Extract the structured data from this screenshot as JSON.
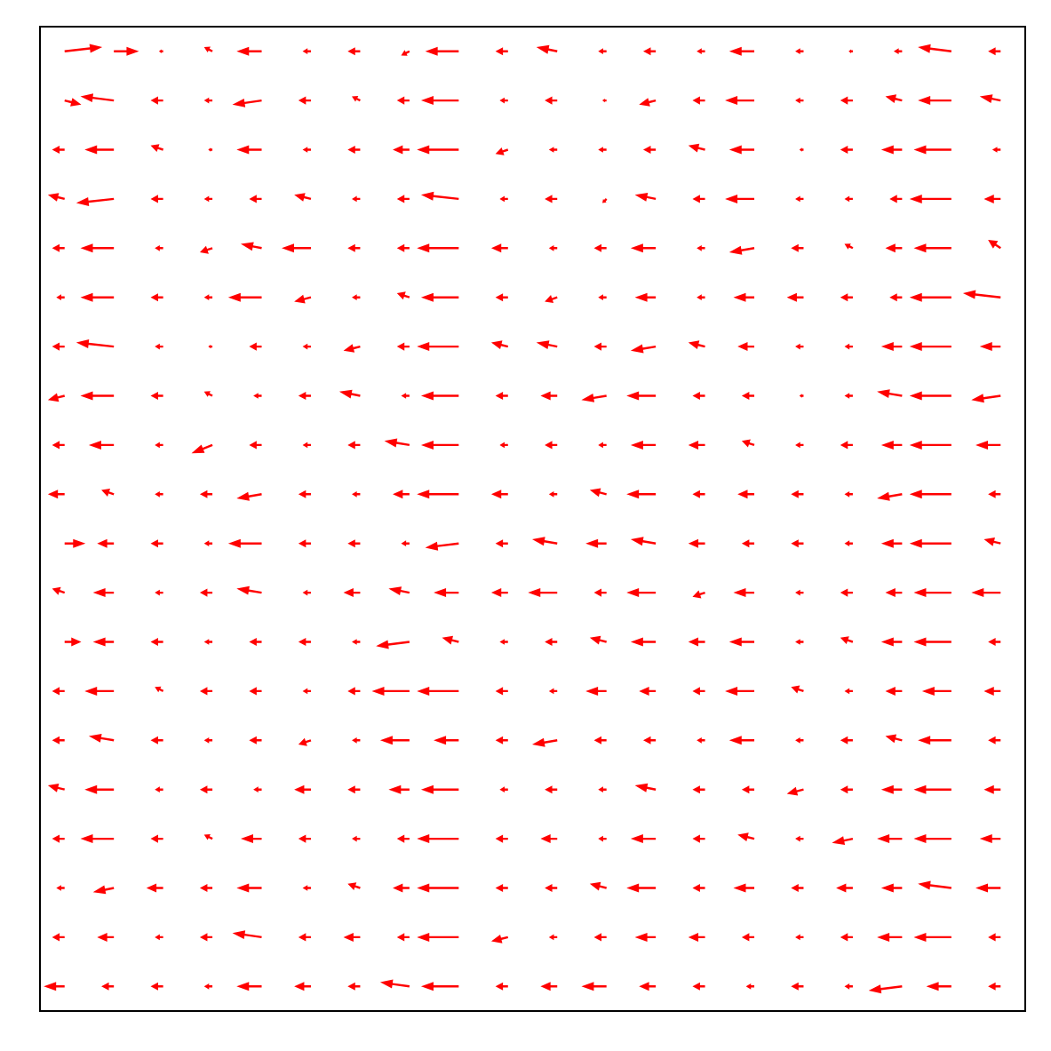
{
  "chart_data": {
    "type": "quiver",
    "color": "#ff0000",
    "grid": false,
    "tick_labels": false,
    "xlim": [
      -0.5,
      19.5
    ],
    "ylim": [
      -0.5,
      19.5
    ],
    "x": [
      0,
      1,
      2,
      3,
      4,
      5,
      6,
      7,
      8,
      9,
      10,
      11,
      12,
      13,
      14,
      15,
      16,
      17,
      18,
      19
    ],
    "y": [
      19,
      18,
      17,
      16,
      15,
      14,
      13,
      12,
      11,
      10,
      9,
      8,
      7,
      6,
      5,
      4,
      3,
      2,
      1,
      0
    ],
    "u": [
      [
        0.9,
        0.6,
        -0.1,
        -0.2,
        -0.6,
        -0.2,
        -0.3,
        -0.2,
        -0.8,
        -0.3,
        -0.5,
        -0.2,
        -0.3,
        -0.2,
        -0.6,
        -0.2,
        -0.1,
        -0.2,
        -0.8,
        -0.3
      ],
      [
        0.4,
        -0.8,
        -0.3,
        -0.2,
        -0.7,
        -0.3,
        -0.2,
        -0.3,
        -0.9,
        -0.2,
        -0.3,
        -0.1,
        -0.4,
        -0.3,
        -0.7,
        -0.2,
        -0.3,
        -0.4,
        -0.8,
        -0.5
      ],
      [
        -0.3,
        -0.7,
        -0.3,
        -0.1,
        -0.6,
        -0.2,
        -0.3,
        -0.4,
        -1.0,
        -0.3,
        -0.2,
        -0.2,
        -0.3,
        -0.4,
        -0.6,
        -0.1,
        -0.3,
        -0.5,
        -0.9,
        -0.2
      ],
      [
        -0.4,
        -0.9,
        -0.3,
        -0.2,
        -0.3,
        -0.4,
        -0.2,
        -0.3,
        -0.9,
        -0.2,
        -0.3,
        -0.1,
        -0.5,
        -0.3,
        -0.7,
        -0.2,
        -0.2,
        -0.3,
        -1.0,
        -0.4
      ],
      [
        -0.3,
        -0.8,
        -0.2,
        -0.3,
        -0.5,
        -0.7,
        -0.3,
        -0.3,
        -1.0,
        -0.4,
        -0.2,
        -0.3,
        -0.6,
        -0.2,
        -0.6,
        -0.3,
        -0.2,
        -0.4,
        -0.9,
        -0.3
      ],
      [
        -0.2,
        -0.8,
        -0.3,
        -0.2,
        -0.8,
        -0.4,
        -0.2,
        -0.3,
        -0.9,
        -0.3,
        -0.3,
        -0.2,
        -0.5,
        -0.2,
        -0.5,
        -0.4,
        -0.3,
        -0.3,
        -1.0,
        -0.9
      ],
      [
        -0.3,
        -0.9,
        -0.2,
        -0.1,
        -0.3,
        -0.2,
        -0.4,
        -0.3,
        -1.0,
        -0.4,
        -0.5,
        -0.3,
        -0.6,
        -0.4,
        -0.4,
        -0.2,
        -0.2,
        -0.5,
        -1.0,
        -0.5
      ],
      [
        -0.4,
        -0.8,
        -0.3,
        -0.2,
        -0.2,
        -0.3,
        -0.5,
        -0.2,
        -0.9,
        -0.3,
        -0.4,
        -0.6,
        -0.7,
        -0.3,
        -0.3,
        -0.1,
        -0.2,
        -0.6,
        -1.0,
        -0.7
      ],
      [
        -0.3,
        -0.6,
        -0.2,
        -0.5,
        -0.3,
        -0.2,
        -0.3,
        -0.6,
        -0.9,
        -0.2,
        -0.3,
        -0.2,
        -0.6,
        -0.4,
        -0.3,
        -0.2,
        -0.3,
        -0.5,
        -1.0,
        -0.6
      ],
      [
        -0.4,
        -0.3,
        -0.2,
        -0.3,
        -0.6,
        -0.3,
        -0.2,
        -0.4,
        -1.0,
        -0.4,
        -0.2,
        -0.4,
        -0.7,
        -0.3,
        -0.4,
        -0.3,
        -0.2,
        -0.6,
        -1.0,
        -0.3
      ],
      [
        0.5,
        -0.4,
        -0.3,
        -0.2,
        -0.8,
        -0.3,
        -0.3,
        -0.2,
        -0.8,
        -0.3,
        -0.6,
        -0.5,
        -0.6,
        -0.4,
        -0.3,
        -0.3,
        -0.2,
        -0.5,
        -1.0,
        -0.4
      ],
      [
        -0.3,
        -0.5,
        -0.2,
        -0.3,
        -0.6,
        -0.2,
        -0.4,
        -0.5,
        -0.6,
        -0.4,
        -0.7,
        -0.3,
        -0.7,
        -0.3,
        -0.5,
        -0.2,
        -0.3,
        -0.4,
        -0.9,
        -0.7
      ],
      [
        0.4,
        -0.5,
        -0.3,
        -0.2,
        -0.3,
        -0.3,
        -0.2,
        -0.8,
        -0.4,
        -0.2,
        -0.3,
        -0.4,
        -0.6,
        -0.4,
        -0.6,
        -0.2,
        -0.3,
        -0.5,
        -0.9,
        -0.3
      ],
      [
        -0.3,
        -0.7,
        -0.2,
        -0.3,
        -0.3,
        -0.2,
        -0.3,
        -0.9,
        -1.0,
        -0.3,
        -0.2,
        -0.5,
        -0.4,
        -0.3,
        -0.7,
        -0.3,
        -0.2,
        -0.4,
        -0.7,
        -0.4
      ],
      [
        -0.3,
        -0.6,
        -0.3,
        -0.2,
        -0.3,
        -0.3,
        -0.2,
        -0.7,
        -0.6,
        -0.3,
        -0.6,
        -0.3,
        -0.3,
        -0.2,
        -0.6,
        -0.2,
        -0.3,
        -0.4,
        -0.8,
        -0.3
      ],
      [
        -0.4,
        -0.7,
        -0.2,
        -0.3,
        -0.2,
        -0.4,
        -0.3,
        -0.5,
        -0.9,
        -0.2,
        -0.3,
        -0.2,
        -0.5,
        -0.3,
        -0.3,
        -0.4,
        -0.3,
        -0.5,
        -0.9,
        -0.4
      ],
      [
        -0.3,
        -0.8,
        -0.3,
        -0.2,
        -0.5,
        -0.3,
        -0.2,
        -0.3,
        -1.0,
        -0.3,
        -0.4,
        -0.2,
        -0.6,
        -0.3,
        -0.4,
        -0.2,
        -0.5,
        -0.6,
        -0.9,
        -0.5
      ],
      [
        -0.2,
        -0.5,
        -0.4,
        -0.3,
        -0.6,
        -0.2,
        -0.3,
        -0.4,
        -1.0,
        -0.3,
        -0.3,
        -0.4,
        -0.7,
        -0.3,
        -0.5,
        -0.3,
        -0.4,
        -0.5,
        -0.8,
        -0.6
      ],
      [
        -0.3,
        -0.4,
        -0.2,
        -0.3,
        -0.7,
        -0.3,
        -0.4,
        -0.3,
        -1.0,
        -0.4,
        -0.2,
        -0.3,
        -0.5,
        -0.4,
        -0.3,
        -0.2,
        -0.3,
        -0.6,
        -0.9,
        -0.3
      ],
      [
        -0.5,
        -0.3,
        -0.3,
        -0.2,
        -0.6,
        -0.4,
        -0.3,
        -0.7,
        -0.9,
        -0.3,
        -0.4,
        -0.6,
        -0.4,
        -0.3,
        -0.2,
        -0.3,
        -0.2,
        -0.8,
        -0.6,
        -0.3
      ]
    ],
    "v": [
      [
        0.1,
        0,
        0,
        0.1,
        0,
        0,
        0,
        -0.1,
        0,
        0,
        0.1,
        0,
        0,
        0,
        0,
        0,
        0,
        0,
        0.1,
        0
      ],
      [
        -0.1,
        0.1,
        0,
        0,
        -0.1,
        0,
        0.1,
        0,
        0,
        0,
        0,
        0,
        -0.1,
        0,
        0,
        0,
        0,
        0.1,
        0,
        0.1
      ],
      [
        0,
        0,
        0.1,
        0,
        0,
        0,
        0,
        0,
        0,
        -0.1,
        0,
        0,
        0,
        0.1,
        0,
        0,
        0,
        0,
        0,
        0
      ],
      [
        0.1,
        -0.1,
        0,
        0,
        0,
        0.1,
        0,
        0,
        0.1,
        0,
        0,
        -0.1,
        0.1,
        0,
        0,
        0,
        0,
        0,
        0,
        0
      ],
      [
        0,
        0,
        0,
        -0.1,
        0.1,
        0,
        0,
        0,
        0,
        0,
        0,
        0,
        0,
        0,
        -0.1,
        0,
        0.1,
        0,
        0,
        0.2
      ],
      [
        0,
        0,
        0,
        0,
        0,
        -0.1,
        0,
        0.1,
        0,
        0,
        -0.1,
        0,
        0,
        0,
        0,
        0,
        0,
        0,
        0,
        0.1
      ],
      [
        0,
        0.1,
        0,
        0,
        0,
        0,
        -0.1,
        0,
        0,
        0.1,
        0.1,
        0,
        -0.1,
        0.1,
        0,
        0,
        0,
        0,
        0,
        0
      ],
      [
        -0.1,
        0,
        0,
        0.1,
        0,
        0,
        0.1,
        0,
        0,
        0,
        0,
        -0.1,
        0,
        0,
        0,
        0,
        0,
        0.1,
        0,
        -0.1
      ],
      [
        0,
        0,
        0,
        -0.2,
        0,
        0,
        0,
        0.1,
        0,
        0,
        0,
        0,
        0,
        0,
        0.1,
        0,
        0,
        0,
        0,
        0
      ],
      [
        0,
        0.1,
        0,
        0,
        -0.1,
        0,
        0,
        0,
        0,
        0,
        0,
        0.1,
        0,
        0,
        0,
        0,
        0,
        -0.1,
        0,
        0
      ],
      [
        0,
        0,
        0,
        0,
        0,
        0,
        0,
        0,
        -0.1,
        0,
        0.1,
        0,
        0.1,
        0,
        0,
        0,
        0,
        0,
        0,
        0.1
      ],
      [
        0.1,
        0,
        0,
        0,
        0.1,
        0,
        0,
        0.1,
        0,
        0,
        0,
        0,
        0,
        -0.1,
        0,
        0,
        0,
        0,
        0,
        0
      ],
      [
        0,
        0,
        0,
        0,
        0,
        0,
        0,
        -0.1,
        0.1,
        0,
        0,
        0.1,
        0,
        0,
        0,
        0,
        0.1,
        0,
        0,
        0
      ],
      [
        0,
        0,
        0.1,
        0,
        0,
        0,
        0,
        0,
        0,
        0,
        0,
        0,
        0,
        0,
        0,
        0.1,
        0,
        0,
        0,
        0
      ],
      [
        0,
        0.1,
        0,
        0,
        0,
        -0.1,
        0,
        0,
        0,
        0,
        -0.1,
        0,
        0,
        0,
        0,
        0,
        0,
        0.1,
        0,
        0
      ],
      [
        0.1,
        0,
        0,
        0,
        0,
        0,
        0,
        0,
        0,
        0,
        0,
        0,
        0.1,
        0,
        0,
        -0.1,
        0,
        0,
        0,
        0
      ],
      [
        0,
        0,
        0,
        0.1,
        0,
        0,
        0,
        0,
        0,
        0,
        0,
        0,
        0,
        0,
        0.1,
        0,
        -0.1,
        0,
        0,
        0
      ],
      [
        0,
        -0.1,
        0,
        0,
        0,
        0,
        0.1,
        0,
        0,
        0,
        0,
        0.1,
        0,
        0,
        0,
        0,
        0,
        0,
        0.1,
        0
      ],
      [
        0,
        0,
        0,
        0,
        0.1,
        0,
        0,
        0,
        0,
        -0.1,
        0,
        0,
        0,
        0,
        0,
        0,
        0,
        0,
        0,
        0
      ],
      [
        0,
        0,
        0,
        0,
        0,
        0,
        0,
        0.1,
        0,
        0,
        0,
        0,
        0,
        0,
        0,
        0,
        0,
        -0.1,
        0,
        0
      ]
    ]
  }
}
